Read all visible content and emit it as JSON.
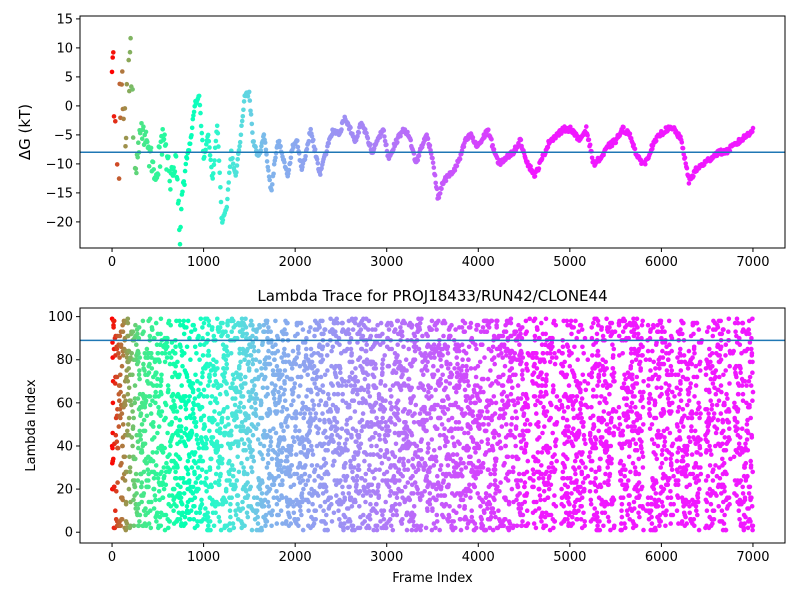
{
  "chart_data": [
    {
      "type": "scatter",
      "title": "",
      "xlabel": "",
      "ylabel": "ΔG (kT)",
      "xlim": [
        -350,
        7350
      ],
      "ylim": [
        -24.5,
        15.5
      ],
      "xticks": [
        0,
        1000,
        2000,
        3000,
        4000,
        5000,
        6000,
        7000
      ],
      "yticks": [
        -20,
        -15,
        -10,
        -5,
        0,
        5,
        10,
        15
      ],
      "hline": -8,
      "colormap": "rainbow",
      "color_direction": "frame index high = violet, low = red",
      "hline_color": "#1f77b4",
      "trace_anchors_x": [
        0,
        30,
        60,
        100,
        150,
        200,
        260,
        320,
        400,
        480,
        560,
        640,
        700,
        740,
        760,
        800,
        860,
        900,
        950,
        1000,
        1050,
        1100,
        1150,
        1200,
        1250,
        1300,
        1350,
        1400,
        1450,
        1500,
        1540,
        1600,
        1660,
        1700,
        1740,
        1780,
        1820,
        1870,
        1920,
        1970,
        2020,
        2070,
        2120,
        2170,
        2220,
        2270,
        2320,
        2370,
        2420,
        2480,
        2540,
        2600,
        2660,
        2720,
        2780,
        2840,
        2900,
        2960,
        3020,
        3080,
        3140,
        3200,
        3260,
        3320,
        3380,
        3440,
        3500,
        3560,
        3620,
        3680,
        3740,
        3800,
        3860,
        3920,
        3980,
        4040,
        4100,
        4160,
        4220,
        4300,
        4380,
        4460,
        4540,
        4620,
        4700,
        4780,
        4860,
        4940,
        5020,
        5100,
        5180,
        5260,
        5340,
        5420,
        5500,
        5580,
        5660,
        5740,
        5820,
        5900,
        5980,
        6060,
        6140,
        6220,
        6300,
        6380,
        6460,
        6540,
        6620,
        6700,
        6780,
        6860,
        6940,
        7000
      ],
      "trace_anchors_y": [
        12,
        0,
        -15,
        5,
        -5,
        10,
        -12,
        -3,
        -8,
        -11,
        -6,
        -13,
        -8,
        -22,
        -18,
        -10,
        -6,
        0,
        2,
        -9,
        -5,
        -13,
        -3,
        -20,
        -18,
        -8,
        -12,
        -6,
        2,
        2,
        -6,
        -9,
        -5,
        -10,
        -15,
        -9,
        -6,
        -9,
        -12,
        -7,
        -6,
        -11,
        -8,
        -4,
        -8,
        -12,
        -9,
        -6,
        -4,
        -5,
        -2,
        -4,
        -6,
        -3,
        -5,
        -8,
        -6,
        -4,
        -9,
        -7,
        -5,
        -4,
        -6,
        -10,
        -7,
        -5,
        -9,
        -16,
        -13,
        -12,
        -11,
        -9,
        -6,
        -5,
        -7,
        -6,
        -4,
        -7,
        -10,
        -9,
        -8,
        -6,
        -10,
        -12,
        -9,
        -6,
        -5,
        -4,
        -4,
        -6,
        -4,
        -10,
        -9,
        -7,
        -6,
        -4,
        -5,
        -9,
        -10,
        -7,
        -5,
        -4,
        -4,
        -6,
        -13,
        -11,
        -10,
        -9,
        -8,
        -8,
        -7,
        -6,
        -5,
        -4
      ]
    },
    {
      "type": "scatter",
      "title": "Lambda Trace for PROJ18433/RUN42/CLONE44",
      "xlabel": "Frame Index",
      "ylabel": "Lambda Index",
      "xlim": [
        -350,
        7350
      ],
      "ylim": [
        -5,
        104
      ],
      "xticks": [
        0,
        1000,
        2000,
        3000,
        4000,
        5000,
        6000,
        7000
      ],
      "yticks": [
        0,
        20,
        40,
        60,
        80,
        100
      ],
      "hline": 89,
      "colormap": "rainbow",
      "hline_color": "#1f77b4",
      "value_range": [
        1,
        99
      ],
      "frames": 7000
    }
  ]
}
